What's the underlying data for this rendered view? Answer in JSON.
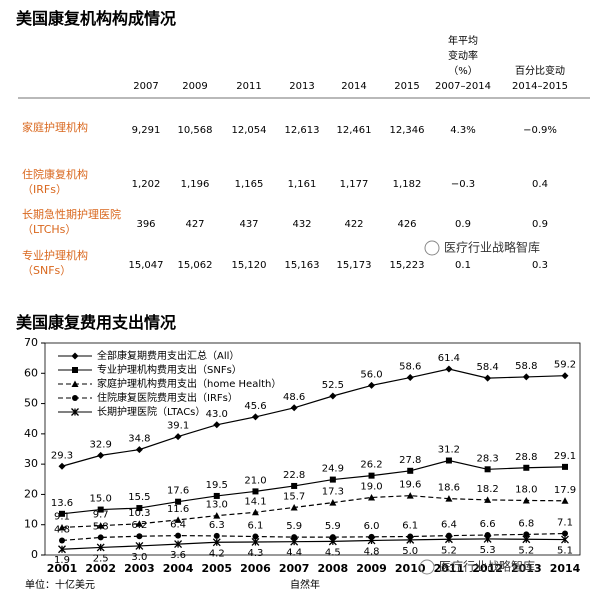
{
  "table_section": {
    "title": "美国康复机构构成情况",
    "columns": [
      [
        "2007"
      ],
      [
        "2009"
      ],
      [
        "2011"
      ],
      [
        "2013"
      ],
      [
        "2014"
      ],
      [
        "2015"
      ],
      [
        "年平均",
        "变动率",
        "（%）",
        "2007–2014"
      ],
      [
        "百分比变动",
        "2014–2015"
      ]
    ],
    "rows": [
      {
        "label": [
          "家庭护理机构"
        ],
        "cells": [
          "9,291",
          "10,568",
          "12,054",
          "12,613",
          "12,461",
          "12,346",
          "4.3%",
          "−0.9%"
        ]
      },
      {
        "label": [
          "住院康复机构",
          "（IRFs）"
        ],
        "cells": [
          "1,202",
          "1,196",
          "1,165",
          "1,161",
          "1,177",
          "1,182",
          "−0.3",
          "0.4"
        ]
      },
      {
        "label": [
          "长期急性期护理医院",
          "（LTCHs）"
        ],
        "cells": [
          "396",
          "427",
          "437",
          "432",
          "422",
          "426",
          "0.9",
          "0.9"
        ]
      },
      {
        "label": [
          "专业护理机构",
          "（SNFs）"
        ],
        "cells": [
          "15,047",
          "15,062",
          "15,120",
          "15,163",
          "15,173",
          "15,223",
          "0.1",
          "0.3"
        ]
      }
    ]
  },
  "watermark": "医疗行业战略智库",
  "chart_data": {
    "type": "line",
    "title": "美国康复费用支出情况",
    "x_label": "自然年",
    "unit_note": "单位：十亿美元",
    "categories": [
      "2001",
      "2002",
      "2003",
      "2004",
      "2005",
      "2006",
      "2007",
      "2008",
      "2009",
      "2010",
      "2011",
      "2012",
      "2013",
      "2014"
    ],
    "ylim": [
      0,
      70
    ],
    "yticks": [
      0,
      10,
      20,
      30,
      40,
      50,
      60,
      70
    ],
    "grid": false,
    "legend": "top-left",
    "series": [
      {
        "name": "全部康复期费用支出汇总（All）",
        "color": "#000000",
        "marker": "diamond",
        "line_style": "solid",
        "label_side": "above",
        "values": [
          29.3,
          32.9,
          34.8,
          39.1,
          43.0,
          45.6,
          48.6,
          52.5,
          56.0,
          58.6,
          61.4,
          58.4,
          58.8,
          59.2
        ],
        "value_labels": [
          "29.3",
          "32.9",
          "34.8",
          "39.1",
          "43.0",
          "45.6",
          "48.6",
          "52.5",
          "56.0",
          "58.6",
          "61.4",
          "58.4",
          "58.8",
          "59.2"
        ]
      },
      {
        "name": "专业护理机构费用支出（SNFs）",
        "color": "#000000",
        "marker": "square",
        "line_style": "solid",
        "label_side": "above",
        "values": [
          13.6,
          15.0,
          15.5,
          17.6,
          19.5,
          21.0,
          22.8,
          24.9,
          26.2,
          27.8,
          31.2,
          28.3,
          28.8,
          29.1
        ],
        "value_labels": [
          "13.6",
          "15.0",
          "15.5",
          "17.6",
          "19.5",
          "21.0",
          "22.8",
          "24.9",
          "26.2",
          "27.8",
          "31.2",
          "28.3",
          "28.8",
          "29.1"
        ]
      },
      {
        "name": "家庭护理机构费用支出（home Health）",
        "color": "#000000",
        "marker": "triangle",
        "line_style": "dashed",
        "label_side": "above",
        "values": [
          9.1,
          9.7,
          10.3,
          11.6,
          13.0,
          14.1,
          15.7,
          17.3,
          19.0,
          19.6,
          18.6,
          18.2,
          18.0,
          17.9
        ],
        "value_labels": [
          "9.1",
          "9.7",
          "10.3",
          "11.6",
          "13.0",
          "14.1",
          "15.7",
          "17.3",
          "19.0",
          "19.6",
          "18.6",
          "18.2",
          "18.0",
          "17.9"
        ]
      },
      {
        "name": "住院康复医院费用支出（IRFs）",
        "color": "#000000",
        "marker": "circle",
        "line_style": "dashed",
        "label_side": "above",
        "values": [
          4.8,
          5.8,
          6.2,
          6.4,
          6.3,
          6.1,
          5.9,
          5.9,
          6.0,
          6.1,
          6.4,
          6.6,
          6.8,
          7.1
        ],
        "value_labels": [
          "4.8",
          "5.8",
          "6.2",
          "6.4",
          "6.3",
          "6.1",
          "5.9",
          "5.9",
          "6.0",
          "6.1",
          "6.4",
          "6.6",
          "6.8",
          "7.1"
        ]
      },
      {
        "name": "长期护理医院（LTACs）",
        "color": "#000000",
        "marker": "star",
        "line_style": "solid",
        "label_side": "below",
        "values": [
          1.9,
          2.5,
          3.0,
          3.6,
          4.2,
          4.3,
          4.4,
          4.5,
          4.8,
          5.0,
          5.2,
          5.3,
          5.2,
          5.1
        ],
        "value_labels": [
          "1.9",
          "2.5",
          "3.0",
          "3.6",
          "4.2",
          "4.3",
          "4.4",
          "4.5",
          "4.8",
          "5.0",
          "5.2",
          "5.3",
          "5.2",
          "5.1"
        ]
      }
    ]
  }
}
